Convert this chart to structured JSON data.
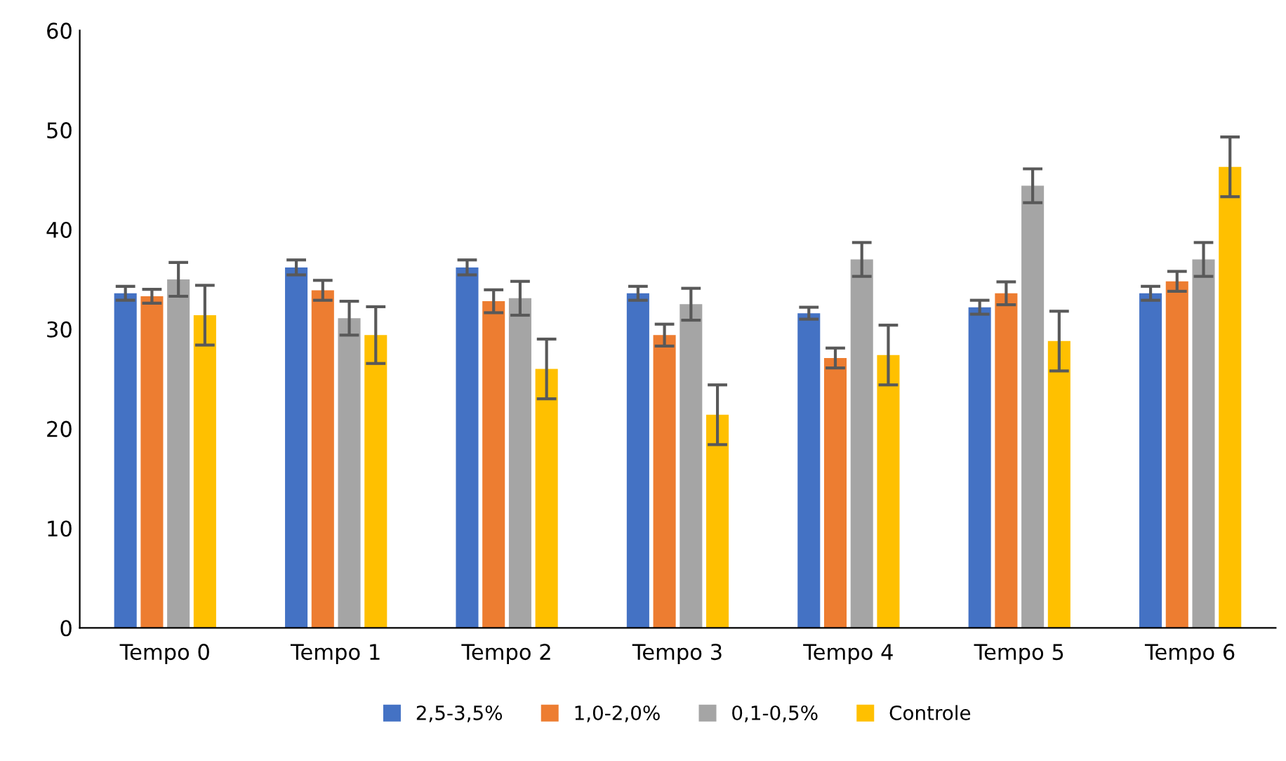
{
  "chart_data": {
    "type": "bar",
    "categories": [
      "Tempo 0",
      "Tempo 1",
      "Tempo 2",
      "Tempo 3",
      "Tempo 4",
      "Tempo 5",
      "Tempo 6"
    ],
    "series": [
      {
        "name": "2,5-3,5%",
        "color": "#4472c4",
        "values": [
          33.6,
          36.2,
          36.2,
          33.6,
          31.6,
          32.2,
          33.6
        ],
        "errors": [
          0.7,
          0.75,
          0.75,
          0.7,
          0.6,
          0.7,
          0.7
        ]
      },
      {
        "name": "1,0-2,0%",
        "color": "#ed7d31",
        "values": [
          33.3,
          33.9,
          32.8,
          29.4,
          27.1,
          33.6,
          34.8
        ],
        "errors": [
          0.7,
          1.0,
          1.15,
          1.1,
          1.0,
          1.15,
          1.0
        ]
      },
      {
        "name": "0,1-0,5%",
        "color": "#a5a5a5",
        "values": [
          35.0,
          31.1,
          33.1,
          32.5,
          37.0,
          44.4,
          37.0
        ],
        "errors": [
          1.7,
          1.7,
          1.7,
          1.6,
          1.7,
          1.7,
          1.7
        ]
      },
      {
        "name": "Controle",
        "color": "#ffc000",
        "values": [
          31.4,
          29.4,
          26.0,
          21.4,
          27.4,
          28.8,
          46.3
        ],
        "errors": [
          3.0,
          2.85,
          3.0,
          3.0,
          3.0,
          3.0,
          3.0
        ]
      }
    ],
    "ylim": [
      0,
      60
    ],
    "yticks": [
      0,
      10,
      20,
      30,
      40,
      50,
      60
    ],
    "grid": false,
    "legend": "bottom"
  }
}
